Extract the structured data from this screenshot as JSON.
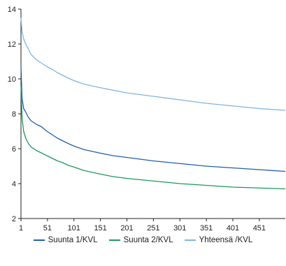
{
  "chart_data": {
    "type": "line",
    "title": "",
    "xlabel": "",
    "ylabel": "",
    "xlim": [
      1,
      500
    ],
    "ylim": [
      2,
      14
    ],
    "y_ticks": [
      "2",
      "4",
      "6",
      "8",
      "10",
      "12",
      "14"
    ],
    "x_ticks": [
      "1",
      "51",
      "101",
      "151",
      "201",
      "251",
      "301",
      "351",
      "401",
      "451"
    ],
    "grid": false,
    "legend_position": "bottom",
    "series": [
      {
        "name": "Suunta 1/KVL",
        "color": "#1f5fad",
        "points": [
          [
            1,
            10.7
          ],
          [
            3,
            8.9
          ],
          [
            6,
            8.3
          ],
          [
            10,
            8.1
          ],
          [
            15,
            7.8
          ],
          [
            20,
            7.6
          ],
          [
            30,
            7.4
          ],
          [
            40,
            7.25
          ],
          [
            50,
            7.0
          ],
          [
            60,
            6.8
          ],
          [
            70,
            6.6
          ],
          [
            80,
            6.45
          ],
          [
            90,
            6.3
          ],
          [
            101,
            6.15
          ],
          [
            120,
            5.95
          ],
          [
            150,
            5.75
          ],
          [
            175,
            5.6
          ],
          [
            201,
            5.5
          ],
          [
            251,
            5.3
          ],
          [
            301,
            5.15
          ],
          [
            351,
            5.0
          ],
          [
            401,
            4.9
          ],
          [
            451,
            4.8
          ],
          [
            500,
            4.7
          ]
        ]
      },
      {
        "name": "Suunta 2/KVL",
        "color": "#1a9a5c",
        "points": [
          [
            1,
            9.6
          ],
          [
            3,
            7.8
          ],
          [
            6,
            7.0
          ],
          [
            10,
            6.6
          ],
          [
            15,
            6.3
          ],
          [
            20,
            6.1
          ],
          [
            30,
            5.9
          ],
          [
            40,
            5.75
          ],
          [
            50,
            5.6
          ],
          [
            60,
            5.45
          ],
          [
            70,
            5.3
          ],
          [
            80,
            5.2
          ],
          [
            90,
            5.05
          ],
          [
            101,
            4.95
          ],
          [
            120,
            4.75
          ],
          [
            150,
            4.55
          ],
          [
            175,
            4.4
          ],
          [
            201,
            4.3
          ],
          [
            251,
            4.15
          ],
          [
            301,
            4.0
          ],
          [
            351,
            3.9
          ],
          [
            401,
            3.8
          ],
          [
            451,
            3.75
          ],
          [
            500,
            3.7
          ]
        ]
      },
      {
        "name": "Yhteensä /KVL",
        "color": "#7fb3e0",
        "points": [
          [
            1,
            13.5
          ],
          [
            3,
            12.7
          ],
          [
            6,
            12.3
          ],
          [
            10,
            12.0
          ],
          [
            15,
            11.7
          ],
          [
            20,
            11.4
          ],
          [
            30,
            11.1
          ],
          [
            40,
            10.9
          ],
          [
            50,
            10.7
          ],
          [
            60,
            10.55
          ],
          [
            70,
            10.35
          ],
          [
            80,
            10.2
          ],
          [
            90,
            10.05
          ],
          [
            101,
            9.9
          ],
          [
            120,
            9.7
          ],
          [
            150,
            9.5
          ],
          [
            175,
            9.35
          ],
          [
            201,
            9.2
          ],
          [
            251,
            9.0
          ],
          [
            301,
            8.8
          ],
          [
            351,
            8.6
          ],
          [
            401,
            8.45
          ],
          [
            451,
            8.3
          ],
          [
            500,
            8.2
          ]
        ]
      }
    ]
  }
}
